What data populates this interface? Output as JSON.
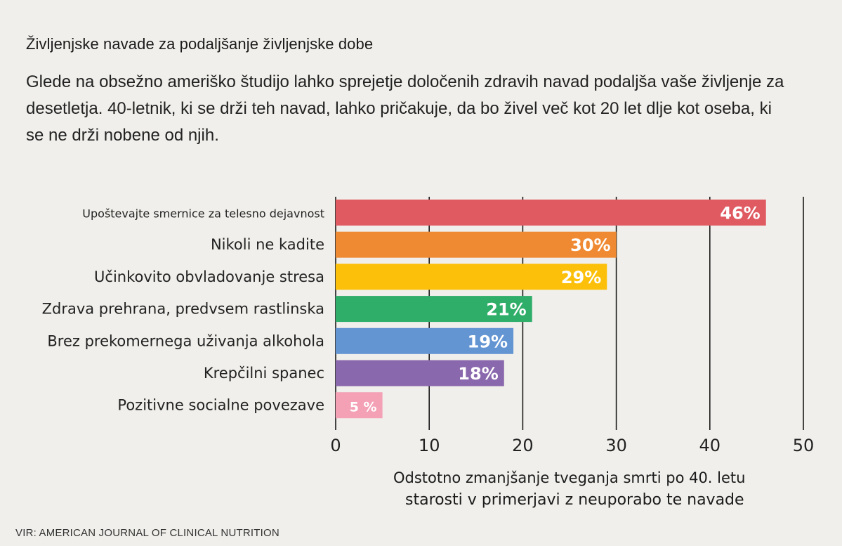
{
  "title": "Življenjske navade za podaljšanje življenjske dobe",
  "subtitle": "Glede na obsežno ameriško študijo lahko sprejetje določenih zdravih navad podaljša vaše življenje za desetletja. 40-letnik, ki se drži teh navad, lahko pričakuje, da bo živel več kot 20 let dlje kot oseba, ki se ne drži nobene od njih.",
  "xlabel_line1": "Odstotno zmanjšanje tveganja smrti po 40. letu",
  "xlabel_line2": "starosti v primerjavi z neuporabo te navade",
  "source": "VIR: AMERICAN JOURNAL OF CLINICAL NUTRITION",
  "chart_data": {
    "type": "bar",
    "orientation": "horizontal",
    "categories": [
      "Upoštevajte smernice za telesno dejavnost",
      "Nikoli ne kadite",
      "Učinkovito obvladovanje stresa",
      "Zdrava prehrana, predvsem rastlinska",
      "Brez prekomernega uživanja alkohola",
      "Krepčilni spanec",
      "Pozitivne socialne povezave"
    ],
    "values": [
      46,
      30,
      29,
      21,
      19,
      18,
      5
    ],
    "value_labels": [
      "46%",
      "30%",
      "29%",
      "21%",
      "19%",
      "18%",
      "5 %"
    ],
    "colors": [
      "#e05a62",
      "#f08a32",
      "#fcc00a",
      "#2fae6a",
      "#6495d3",
      "#8a68ad",
      "#f4a0b5"
    ],
    "xlim": [
      0,
      50
    ],
    "xticks": [
      0,
      10,
      20,
      30,
      40,
      50
    ],
    "grid": "vertical"
  }
}
